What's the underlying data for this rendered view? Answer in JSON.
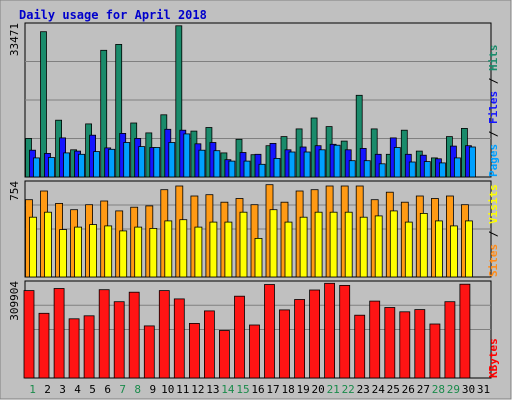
{
  "chart_data": {
    "type": "bar",
    "title": "Daily usage for April 2018",
    "categories": [
      "1",
      "2",
      "3",
      "4",
      "5",
      "6",
      "7",
      "8",
      "9",
      "10",
      "11",
      "12",
      "13",
      "14",
      "15",
      "16",
      "17",
      "18",
      "19",
      "20",
      "21",
      "22",
      "23",
      "24",
      "25",
      "26",
      "27",
      "28",
      "29",
      "30",
      "31"
    ],
    "weekend_days": [
      "1",
      "7",
      "8",
      "14",
      "15",
      "21",
      "22",
      "28",
      "29"
    ],
    "panels": [
      {
        "id": "hits",
        "max_label": "33471",
        "ylim": [
          0,
          33471
        ],
        "legend": [
          {
            "text": "Pages",
            "color": "#00a0ff"
          },
          {
            "text": " / ",
            "color": "#000000"
          },
          {
            "text": "Files",
            "color": "#1414ff"
          },
          {
            "text": " / ",
            "color": "#000000"
          },
          {
            "text": "Hits",
            "color": "#1a8b6b"
          }
        ],
        "series": [
          {
            "name": "Hits",
            "color": "#1a8b6b",
            "values": [
              8500,
              32000,
              12500,
              6000,
              11700,
              27900,
              29200,
              11900,
              9700,
              13700,
              33300,
              10100,
              10900,
              5300,
              8300,
              4900,
              6900,
              8900,
              10600,
              13000,
              11100,
              7900,
              18000,
              10600,
              5000,
              10300,
              5700,
              4200,
              8900,
              10700,
              0
            ]
          },
          {
            "name": "Files",
            "color": "#1414ff",
            "values": [
              5900,
              5200,
              8600,
              5700,
              9200,
              6400,
              9600,
              8500,
              6500,
              10500,
              10300,
              7300,
              7600,
              3800,
              5400,
              5000,
              7400,
              6000,
              6600,
              6900,
              7200,
              6000,
              6300,
              5000,
              8600,
              5000,
              4800,
              4000,
              6800,
              6900,
              0
            ]
          },
          {
            "name": "Pages",
            "color": "#00a0ff",
            "values": [
              4200,
              4300,
              5300,
              5000,
              5600,
              6100,
              7600,
              6700,
              6500,
              7600,
              9500,
              5900,
              5800,
              3500,
              3500,
              2800,
              4100,
              5500,
              5500,
              6000,
              7000,
              3600,
              3600,
              2900,
              6500,
              3300,
              3400,
              3100,
              4200,
              6600,
              0
            ]
          }
        ]
      },
      {
        "id": "visits",
        "max_label": "754",
        "ylim": [
          0,
          754
        ],
        "legend": [
          {
            "text": "Sites",
            "color": "#ff8c1a"
          },
          {
            "text": " / ",
            "color": "#000000"
          },
          {
            "text": "Visits",
            "color": "#ffff00"
          }
        ],
        "series": [
          {
            "name": "Visits",
            "color": "#ff9a14",
            "values": [
              620,
              690,
              590,
              540,
              580,
              610,
              530,
              560,
              570,
              700,
              730,
              650,
              660,
              600,
              630,
              580,
              740,
              600,
              690,
              700,
              730,
              730,
              730,
              620,
              680,
              600,
              650,
              630,
              650,
              580,
              0
            ]
          },
          {
            "name": "Sites",
            "color": "#ffff00",
            "values": [
              480,
              520,
              380,
              400,
              420,
              410,
              370,
              400,
              390,
              450,
              460,
              400,
              440,
              440,
              520,
              310,
              540,
              440,
              480,
              520,
              520,
              520,
              480,
              490,
              530,
              440,
              510,
              450,
              410,
              450,
              0
            ]
          }
        ]
      },
      {
        "id": "kbytes",
        "max_label": "309904",
        "ylim": [
          0,
          309904
        ],
        "legend": [
          {
            "text": "KBytes",
            "color": "#ff0000"
          }
        ],
        "series": [
          {
            "name": "KBytes",
            "color": "#ff1414",
            "values": [
              285000,
              211000,
              292000,
              193000,
              203000,
              288000,
              249000,
              280000,
              170000,
              285000,
              258000,
              178000,
              219000,
              155000,
              267000,
              173000,
              305000,
              222000,
              256000,
              287000,
              309000,
              302000,
              205000,
              251000,
              230000,
              216000,
              223000,
              176000,
              249000,
              306000,
              0
            ]
          }
        ]
      }
    ]
  }
}
